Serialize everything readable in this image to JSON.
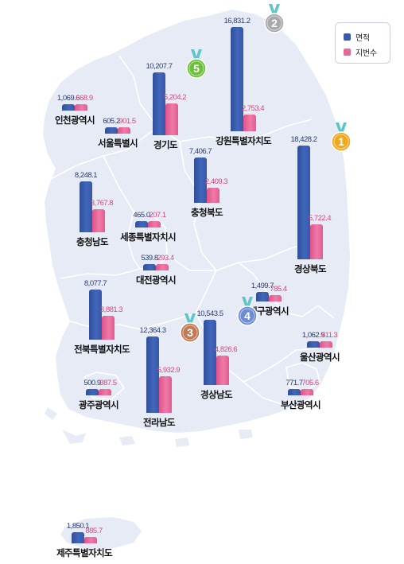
{
  "legend": {
    "area_label": "면적",
    "lots_label": "지번수",
    "area_color": "#3a5aa8",
    "lots_color": "#e8679a"
  },
  "colors": {
    "map_fill": "#e6ebf6",
    "map_border": "#ffffff",
    "medal_gold": "#f2a81d",
    "medal_silver": "#a7a9ad",
    "medal_bronze": "#c27a55",
    "medal_green": "#6cbf3b",
    "medal_blue": "#6d8dd2",
    "ribbon": "#5fc6c8"
  },
  "regions": [
    {
      "id": "incheon",
      "name": "인천광역시",
      "area": "1,069.6",
      "lots": "668.9",
      "area_value": 1069.6,
      "lots_value": 668.9
    },
    {
      "id": "seoul",
      "name": "서울특별시",
      "area": "605.2",
      "lots": "901.5",
      "area_value": 605.2,
      "lots_value": 901.5
    },
    {
      "id": "gyeonggi",
      "name": "경기도",
      "area": "10,207.7",
      "lots": "5,204.2",
      "area_value": 10207.7,
      "lots_value": 5204.2,
      "rank": "5"
    },
    {
      "id": "gangwon",
      "name": "강원특별자치도",
      "area": "16,831.2",
      "lots": "2,753.4",
      "area_value": 16831.2,
      "lots_value": 2753.4,
      "rank": "2"
    },
    {
      "id": "chungbuk",
      "name": "충청북도",
      "area": "7,406.7",
      "lots": "2,409.3",
      "area_value": 7406.7,
      "lots_value": 2409.3
    },
    {
      "id": "gyeongbuk",
      "name": "경상북도",
      "area": "18,428.2",
      "lots": "5,722.4",
      "area_value": 18428.2,
      "lots_value": 5722.4,
      "rank": "1"
    },
    {
      "id": "chungnam",
      "name": "충청남도",
      "area": "8,248.1",
      "lots": "3,767.8",
      "area_value": 8248.1,
      "lots_value": 3767.8
    },
    {
      "id": "sejong",
      "name": "세종특별자치시",
      "area": "465.0",
      "lots": "207.1",
      "area_value": 465.0,
      "lots_value": 207.1
    },
    {
      "id": "daejeon",
      "name": "대전광역시",
      "area": "539.8",
      "lots": "293.4",
      "area_value": 539.8,
      "lots_value": 293.4
    },
    {
      "id": "daegu",
      "name": "대구광역시",
      "area": "1,499.7",
      "lots": "785.4",
      "area_value": 1499.7,
      "lots_value": 785.4
    },
    {
      "id": "jeonbuk",
      "name": "전북특별자치도",
      "area": "8,077.7",
      "lots": "3,881.3",
      "area_value": 8077.7,
      "lots_value": 3881.3
    },
    {
      "id": "jeonnam",
      "name": "전라남도",
      "area": "12,364.3",
      "lots": "5,932.9",
      "area_value": 12364.3,
      "lots_value": 5932.9,
      "rank": "3"
    },
    {
      "id": "gyeongnam",
      "name": "경상남도",
      "area": "10,543.5",
      "lots": "4,826.6",
      "area_value": 10543.5,
      "lots_value": 4826.6,
      "rank": "4"
    },
    {
      "id": "ulsan",
      "name": "울산광역시",
      "area": "1,062.9",
      "lots": "511.3",
      "area_value": 1062.9,
      "lots_value": 511.3
    },
    {
      "id": "gwangju",
      "name": "광주광역시",
      "area": "500.9",
      "lots": "387.5",
      "area_value": 500.9,
      "lots_value": 387.5
    },
    {
      "id": "busan",
      "name": "부산광역시",
      "area": "771.7",
      "lots": "705.6",
      "area_value": 771.7,
      "lots_value": 705.6
    },
    {
      "id": "jeju",
      "name": "제주특별자치도",
      "area": "1,850.1",
      "lots": "885.7",
      "area_value": 1850.1,
      "lots_value": 885.7
    }
  ]
}
